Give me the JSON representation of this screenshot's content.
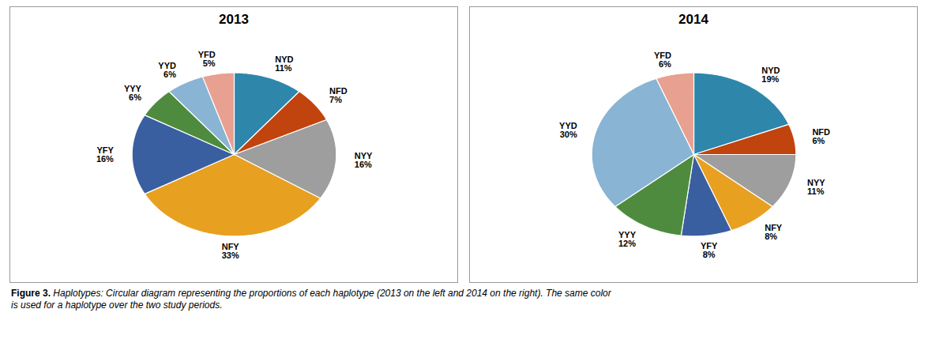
{
  "chart_data": [
    {
      "type": "pie",
      "title": "2013",
      "categories": [
        "NYD",
        "NFD",
        "NYY",
        "NFY",
        "YFY",
        "YYY",
        "YYD",
        "YFD"
      ],
      "values": [
        11,
        7,
        16,
        33,
        16,
        6,
        6,
        5
      ],
      "value_labels": [
        "11%",
        "7%",
        "16%",
        "33%",
        "16%",
        "6%",
        "6%",
        "5%"
      ],
      "colors": [
        "#2E86AB",
        "#C1440E",
        "#9E9E9E",
        "#E8A020",
        "#3A5FA0",
        "#4E8B3F",
        "#89B4D4",
        "#E8A090"
      ]
    },
    {
      "type": "pie",
      "title": "2014",
      "categories": [
        "NYD",
        "NFD",
        "NYY",
        "NFY",
        "YFY",
        "YYY",
        "YYD",
        "YFD"
      ],
      "values": [
        19,
        6,
        11,
        8,
        8,
        12,
        30,
        6
      ],
      "value_labels": [
        "19%",
        "6%",
        "11%",
        "8%",
        "8%",
        "12%",
        "30%",
        "6%"
      ],
      "colors": [
        "#2E86AB",
        "#C1440E",
        "#9E9E9E",
        "#E8A020",
        "#3A5FA0",
        "#4E8B3F",
        "#89B4D4",
        "#E8A090"
      ]
    }
  ],
  "caption": [
    "Figure 3.",
    " Haplotypes: Circular diagram representing the proportions of each haplotype (2013 on the left and 2014 on the right). The same color\nis used for a haplotype over the two study periods."
  ]
}
